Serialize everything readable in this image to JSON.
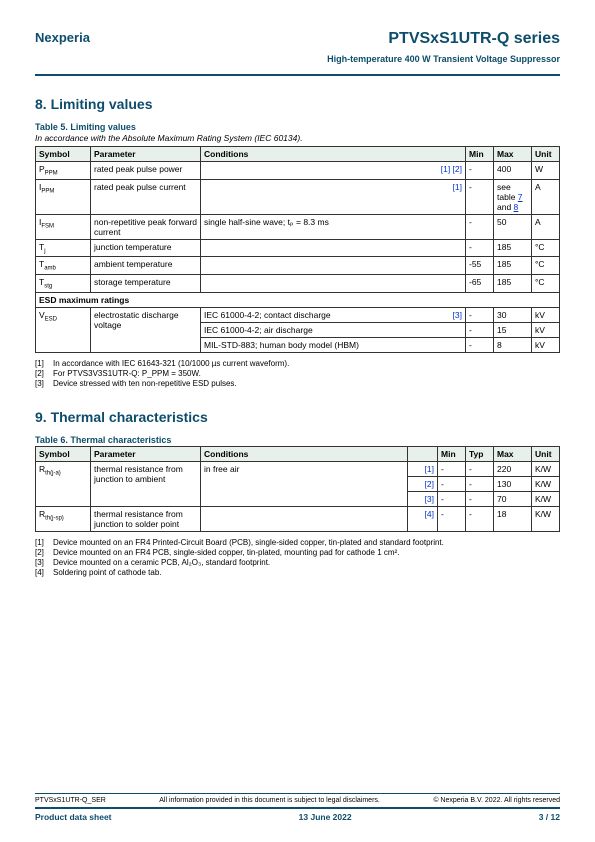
{
  "header": {
    "brand": "Nexperia",
    "title": "PTVSxS1UTR-Q series",
    "subtitle": "High-temperature 400 W Transient Voltage Suppressor"
  },
  "section8": {
    "heading": "8.  Limiting values",
    "table_title": "Table 5. Limiting values",
    "caption": "In accordance with the Absolute Maximum Rating System (IEC 60134).",
    "headers": {
      "sym": "Symbol",
      "param": "Parameter",
      "cond": "Conditions",
      "min": "Min",
      "max": "Max",
      "unit": "Unit"
    },
    "rows": [
      {
        "sym": "P",
        "sub": "PPM",
        "param": "rated peak pulse power",
        "cond": "",
        "refs": "[1] [2]",
        "min": "-",
        "max": "400",
        "unit": "W"
      },
      {
        "sym": "I",
        "sub": "PPM",
        "param": "rated peak pulse current",
        "cond": "",
        "refs": "[1]",
        "min": "-",
        "max": "see table 7 and 8",
        "unit": "A",
        "max_links": true
      },
      {
        "sym": "I",
        "sub": "FSM",
        "param": "non-repetitive peak forward current",
        "cond": "single half-sine wave; tₚ = 8.3 ms",
        "refs": "",
        "min": "-",
        "max": "50",
        "unit": "A"
      },
      {
        "sym": "T",
        "sub": "j",
        "param": "junction temperature",
        "cond": "",
        "refs": "",
        "min": "-",
        "max": "185",
        "unit": "°C"
      },
      {
        "sym": "T",
        "sub": "amb",
        "param": "ambient temperature",
        "cond": "",
        "refs": "",
        "min": "-55",
        "max": "185",
        "unit": "°C"
      },
      {
        "sym": "T",
        "sub": "stg",
        "param": "storage temperature",
        "cond": "",
        "refs": "",
        "min": "-65",
        "max": "185",
        "unit": "°C"
      }
    ],
    "esd_heading": "ESD maximum ratings",
    "esd": {
      "sym": "V",
      "sub": "ESD",
      "param": "electrostatic discharge voltage",
      "subrows": [
        {
          "cond": "IEC 61000-4-2; contact discharge",
          "refs": "[3]",
          "min": "-",
          "max": "30",
          "unit": "kV"
        },
        {
          "cond": "IEC 61000-4-2; air discharge",
          "refs": "",
          "min": "-",
          "max": "15",
          "unit": "kV"
        },
        {
          "cond": "MIL-STD-883; human body model (HBM)",
          "refs": "",
          "min": "-",
          "max": "8",
          "unit": "kV"
        }
      ]
    },
    "footnotes": [
      "In accordance with IEC 61643-321 (10/1000 µs current waveform).",
      "For PTVS3V3S1UTR-Q: P_PPM = 350W.",
      "Device stressed with ten non-repetitive ESD pulses."
    ]
  },
  "section9": {
    "heading": "9.  Thermal characteristics",
    "table_title": "Table 6. Thermal characteristics",
    "headers": {
      "sym": "Symbol",
      "param": "Parameter",
      "cond": "Conditions",
      "min": "Min",
      "typ": "Typ",
      "max": "Max",
      "unit": "Unit"
    },
    "rows": [
      {
        "sym": "R",
        "sub": "th(j-a)",
        "param": "thermal resistance from junction to ambient",
        "cond": "in free air",
        "refs": "[1]",
        "min": "-",
        "typ": "-",
        "max": "220",
        "unit": "K/W",
        "rowspan": 3
      },
      {
        "refs": "[2]",
        "min": "-",
        "typ": "-",
        "max": "130",
        "unit": "K/W"
      },
      {
        "refs": "[3]",
        "min": "-",
        "typ": "-",
        "max": "70",
        "unit": "K/W"
      },
      {
        "sym": "R",
        "sub": "th(j-sp)",
        "param": "thermal resistance from junction to solder point",
        "cond": "",
        "refs": "[4]",
        "min": "-",
        "typ": "-",
        "max": "18",
        "unit": "K/W"
      }
    ],
    "footnotes": [
      "Device mounted on an FR4 Printed-Circuit Board (PCB), single-sided copper, tin-plated and standard footprint.",
      "Device mounted on an FR4 PCB, single-sided copper, tin-plated, mounting pad for cathode 1 cm².",
      "Device mounted on a ceramic PCB, Al₂O₃, standard footprint.",
      "Soldering point of cathode tab."
    ]
  },
  "footer": {
    "code": "PTVSxS1UTR-Q_SER",
    "disclaimer": "All information provided in this document is subject to legal disclaimers.",
    "copyright": "© Nexperia B.V. 2022. All rights reserved",
    "doc_type": "Product data sheet",
    "date": "13 June 2022",
    "page": "3 / 12"
  }
}
